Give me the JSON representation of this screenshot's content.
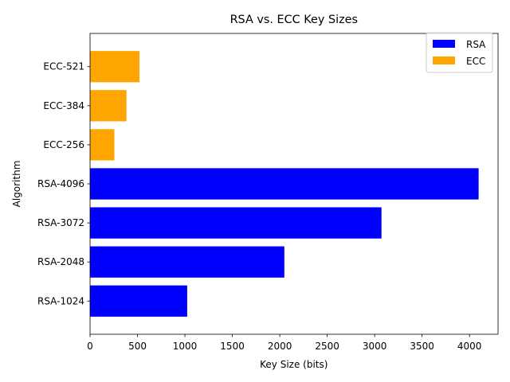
{
  "chart_data": {
    "type": "bar",
    "orientation": "horizontal",
    "title": "RSA vs. ECC Key Sizes",
    "xlabel": "Key Size (bits)",
    "ylabel": "Algorithm",
    "categories": [
      "RSA-1024",
      "RSA-2048",
      "RSA-3072",
      "RSA-4096",
      "ECC-256",
      "ECC-384",
      "ECC-521"
    ],
    "values": [
      1024,
      2048,
      3072,
      4096,
      256,
      384,
      521
    ],
    "bar_series": [
      "RSA",
      "RSA",
      "RSA",
      "RSA",
      "ECC",
      "ECC",
      "ECC"
    ],
    "series": [
      {
        "name": "RSA",
        "color": "#0000ff"
      },
      {
        "name": "ECC",
        "color": "#ffa500"
      }
    ],
    "xlim": [
      0,
      4300.8
    ],
    "xticks": [
      0,
      500,
      1000,
      1500,
      2000,
      2500,
      3000,
      3500,
      4000
    ],
    "grid": false,
    "legend_position": "top-right"
  }
}
